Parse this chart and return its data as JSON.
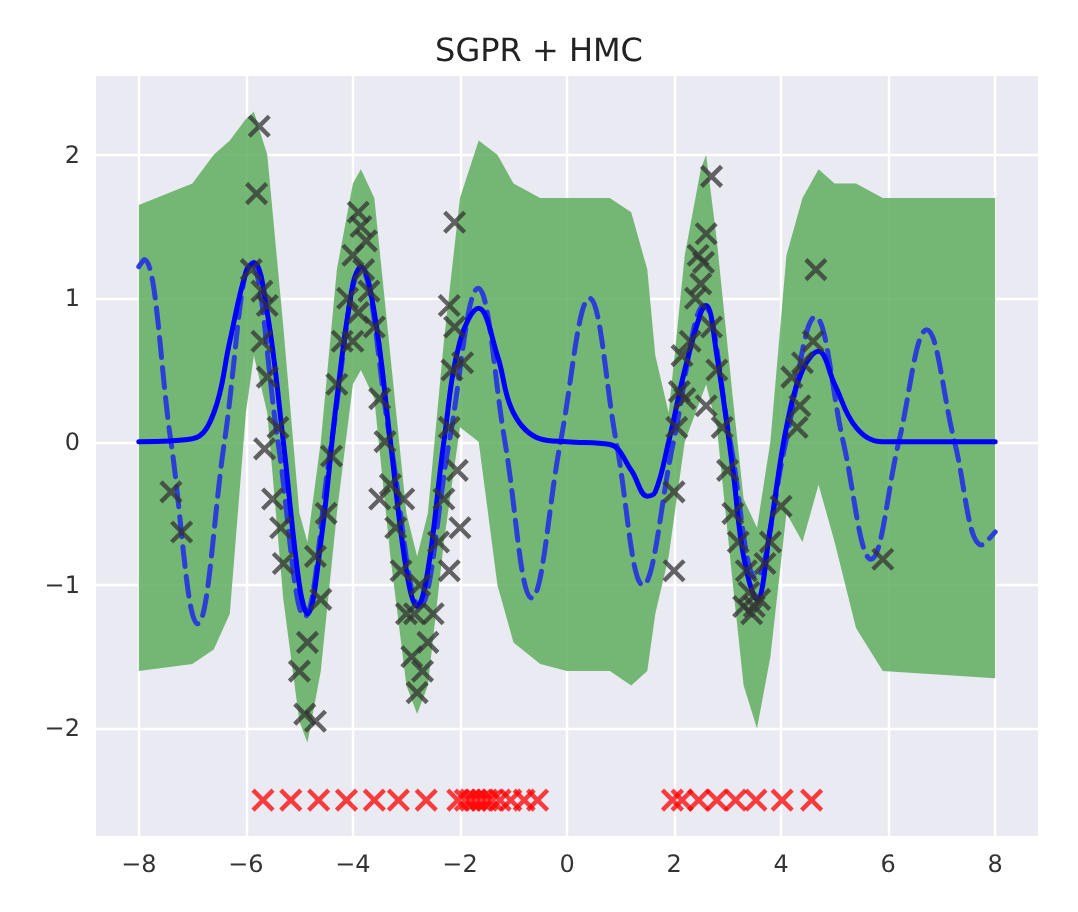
{
  "chart_data": {
    "type": "line",
    "title": "SGPR + HMC",
    "xlim": [
      -8.8,
      8.8
    ],
    "ylim": [
      -2.75,
      2.55
    ],
    "xticks": [
      -8,
      -6,
      -4,
      -2,
      0,
      2,
      4,
      6,
      8
    ],
    "yticks": [
      -2,
      -1,
      0,
      1,
      2
    ],
    "grid": true,
    "legend": false,
    "series": [
      {
        "type": "line",
        "color": "#2b3fd8",
        "line_style": "dashed",
        "marker": "none",
        "x": [
          -8,
          -7.9,
          -7.4,
          -6.9,
          -6.4,
          -5.9,
          -5.4,
          -4.9,
          -4.4,
          -3.85,
          -3.3,
          -2.75,
          -2.2,
          -1.66,
          -1.16,
          -0.66,
          -0.12,
          0.42,
          0.92,
          1.42,
          1.99,
          2.56,
          3.05,
          3.53,
          4.09,
          4.64,
          5.16,
          5.68,
          6.2,
          6.72,
          7.24,
          7.75,
          8
        ],
        "values": [
          1.22,
          1.27,
          0,
          -1.27,
          0,
          1.25,
          0,
          -1.22,
          0,
          1.2,
          0,
          -1.15,
          0,
          1.07,
          0,
          -1.09,
          0,
          1.0,
          0,
          -1.0,
          0,
          0.95,
          0,
          -0.95,
          0,
          0.87,
          0,
          -0.82,
          0,
          0.78,
          0,
          -0.72,
          -0.63
        ]
      },
      {
        "type": "line",
        "color": "#0000ff",
        "line_style": "solid",
        "marker": "none",
        "x": [
          -8,
          -7,
          -6.6,
          -6.3,
          -6,
          -5.85,
          -5.6,
          -5.3,
          -5,
          -4.85,
          -4.6,
          -4.3,
          -4,
          -3.85,
          -3.6,
          -3.3,
          -3,
          -2.8,
          -2.6,
          -2.3,
          -2,
          -1.65,
          -1.3,
          -1,
          -0.5,
          0,
          0.8,
          1.2,
          1.5,
          1.65,
          1.9,
          2.2,
          2.5,
          2.6,
          2.8,
          3.1,
          3.3,
          3.55,
          3.8,
          4.1,
          4.4,
          4.7,
          5,
          5.4,
          5.9,
          8
        ],
        "values": [
          0,
          0.02,
          0.2,
          0.7,
          1.18,
          1.25,
          0.9,
          0,
          -1,
          -1.2,
          -0.7,
          0.3,
          1.1,
          1.22,
          0.9,
          0,
          -0.9,
          -1.15,
          -0.9,
          0,
          0.7,
          0.93,
          0.6,
          0.2,
          0.02,
          0,
          -0.02,
          -0.2,
          -0.38,
          -0.35,
          0,
          0.5,
          0.9,
          0.95,
          0.6,
          -0.2,
          -0.8,
          -1.1,
          -0.6,
          0.1,
          0.5,
          0.63,
          0.4,
          0.1,
          0,
          0
        ],
        "upper": [
          1.65,
          1.8,
          2,
          2.1,
          2.25,
          2.3,
          2,
          0.8,
          -0.5,
          -0.7,
          0,
          1.2,
          1.8,
          1.9,
          1.7,
          0.6,
          -0.5,
          -0.8,
          -0.5,
          0.7,
          1.7,
          2.1,
          2,
          1.8,
          1.7,
          1.7,
          1.7,
          1.6,
          1.2,
          0.6,
          0.2,
          1.3,
          1.9,
          2,
          1.4,
          0.3,
          -0.4,
          -0.6,
          0,
          1.3,
          1.7,
          1.9,
          1.8,
          1.8,
          1.7,
          1.7
        ],
        "lower": [
          -1.6,
          -1.55,
          -1.45,
          -1.2,
          0.2,
          0.6,
          0.2,
          -1.1,
          -1.95,
          -2.1,
          -1.6,
          -0.5,
          0.4,
          0.5,
          0.3,
          -0.8,
          -1.7,
          -1.9,
          -1.7,
          -0.7,
          0.1,
          0,
          -1,
          -1.4,
          -1.55,
          -1.6,
          -1.6,
          -1.7,
          -1.6,
          -1.2,
          -0.8,
          0,
          0.3,
          0.4,
          0.1,
          -1,
          -1.7,
          -2,
          -1.5,
          -0.5,
          -0.7,
          -0.3,
          -0.7,
          -1.3,
          -1.6,
          -1.65
        ]
      },
      {
        "type": "scatter",
        "color": "#333333",
        "marker": "cross",
        "x": [
          -7.4,
          -7.2,
          -5.75,
          -5.8,
          -5.9,
          -5.7,
          -5.6,
          -5.7,
          -5.6,
          -5.65,
          -5.4,
          -5.5,
          -5.35,
          -5.3,
          -5.0,
          -4.85,
          -4.9,
          -4.7,
          -4.6,
          -4.7,
          -4.5,
          -4.4,
          -4.3,
          -4.2,
          -4.1,
          -4.0,
          -3.9,
          -3.85,
          -3.8,
          -3.75,
          -3.7,
          -3.6,
          -3.9,
          -4.0,
          -3.5,
          -3.4,
          -3.3,
          -3.2,
          -3.1,
          -3.0,
          -2.9,
          -2.8,
          -2.7,
          -2.6,
          -2.75,
          -2.5,
          -2.4,
          -2.3,
          -2.2,
          -2.15,
          -2.1,
          -2.05,
          -2.2,
          -2.0,
          -1.95,
          -2.1,
          -2.2,
          -2.85,
          -3.05,
          -3.5,
          2.0,
          2.0,
          2.05,
          2.1,
          2.15,
          2.2,
          2.3,
          2.4,
          2.45,
          2.5,
          2.55,
          2.6,
          2.7,
          2.7,
          2.6,
          2.8,
          2.9,
          3.0,
          3.1,
          3.2,
          3.35,
          3.4,
          3.5,
          3.6,
          3.7,
          3.8,
          4.0,
          4.2,
          4.3,
          4.4,
          4.6,
          4.65,
          4.35,
          5.9,
          3.3,
          3.45
        ],
        "values": [
          -0.35,
          -0.63,
          2.2,
          1.73,
          1.2,
          1.05,
          0.95,
          0.7,
          0.45,
          -0.05,
          0.1,
          -0.4,
          -0.6,
          -0.85,
          -1.6,
          -1.4,
          -1.9,
          -1.95,
          -1.1,
          -0.8,
          -0.5,
          -0.1,
          0.4,
          0.7,
          1.0,
          1.3,
          1.6,
          1.5,
          1.2,
          1.4,
          1.05,
          0.8,
          0.9,
          0.7,
          0.3,
          0,
          -0.3,
          -0.6,
          -0.9,
          -1.2,
          -1.5,
          -1.75,
          -1.6,
          -1.4,
          -1.0,
          -1.2,
          -0.7,
          -0.4,
          0.1,
          0.5,
          0.8,
          -0.2,
          -0.9,
          -0.6,
          0.55,
          1.53,
          0.95,
          -1.2,
          -0.4,
          -0.4,
          -0.9,
          -0.35,
          0.1,
          0.35,
          0.6,
          0.3,
          0.7,
          1.0,
          1.3,
          1.1,
          1.25,
          1.45,
          1.85,
          0.8,
          0.25,
          0.5,
          0.1,
          -0.2,
          -0.5,
          -0.7,
          -0.9,
          -1.05,
          -1.15,
          -1.1,
          -0.85,
          -0.7,
          -0.45,
          0.45,
          0.1,
          0.55,
          0.7,
          1.2,
          0.25,
          -0.82,
          -1.15,
          -1.2
        ]
      },
      {
        "type": "scatter",
        "color": "#ff0000",
        "marker": "cross",
        "x": [
          -5.68,
          -5.16,
          -4.64,
          -4.12,
          -3.6,
          -3.15,
          -2.63,
          -2.04,
          -1.9,
          -1.8,
          -1.7,
          -1.6,
          -1.5,
          -1.4,
          -1.25,
          -1.05,
          -0.8,
          -0.55,
          1.97,
          2.15,
          2.46,
          2.8,
          3.15,
          3.53,
          4.02,
          4.57
        ],
        "values": [
          -2.5,
          -2.5,
          -2.5,
          -2.5,
          -2.5,
          -2.5,
          -2.5,
          -2.5,
          -2.5,
          -2.5,
          -2.5,
          -2.5,
          -2.5,
          -2.5,
          -2.5,
          -2.5,
          -2.5,
          -2.5,
          -2.5,
          -2.5,
          -2.5,
          -2.5,
          -2.5,
          -2.5,
          -2.5,
          -2.5
        ]
      }
    ]
  }
}
